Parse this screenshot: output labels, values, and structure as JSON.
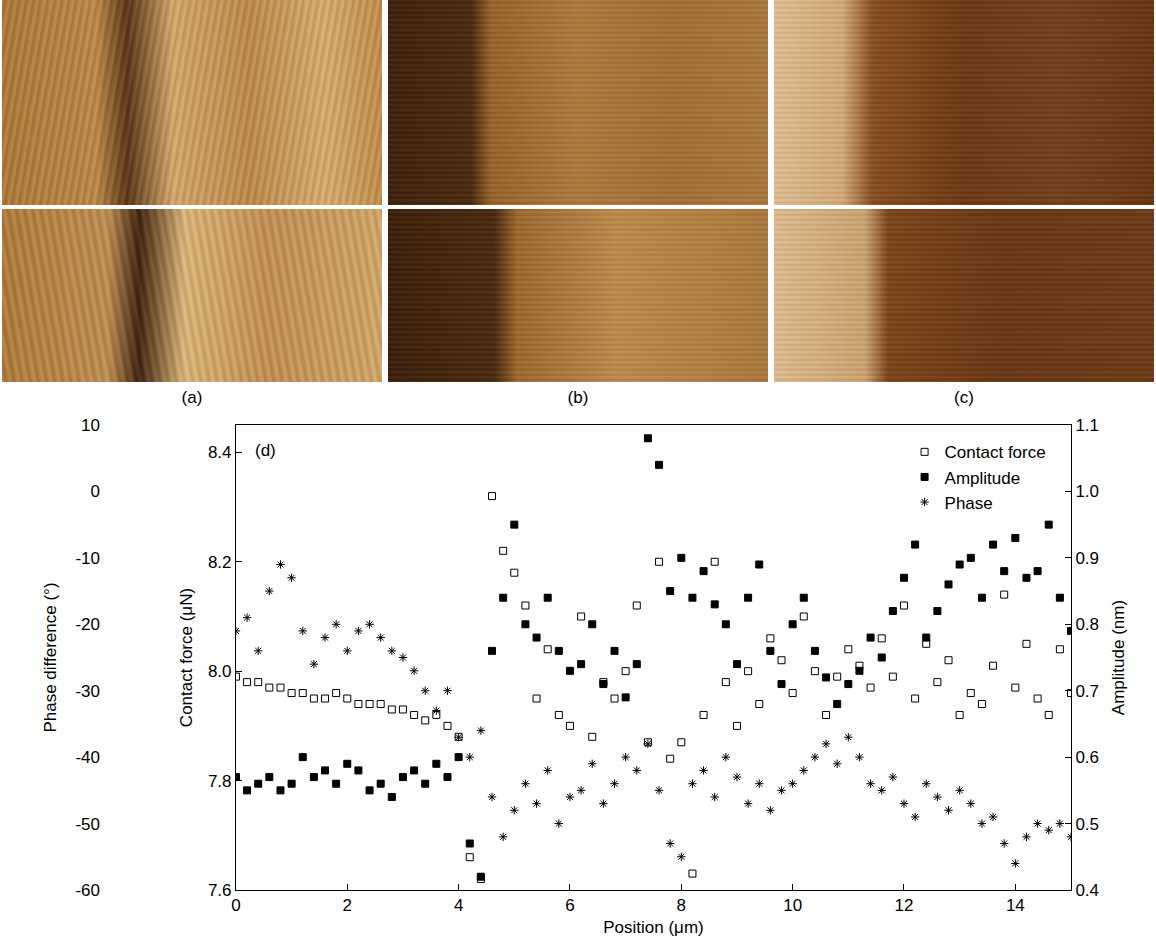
{
  "panels": [
    {
      "label": "(a)"
    },
    {
      "label": "(b)"
    },
    {
      "label": "(c)"
    }
  ],
  "chart_data": {
    "type": "scatter",
    "panel_label": "(d)",
    "xlabel": "Position (μm)",
    "ylabel": "Phase difference (°)",
    "y2label": "Contact force (μN)",
    "y3label": "Amplitude (nm)",
    "xlim": [
      0,
      15
    ],
    "xticks": [
      0,
      2,
      4,
      6,
      8,
      10,
      12,
      14
    ],
    "ylim": [
      -60,
      10
    ],
    "yticks": [
      -60,
      -50,
      -40,
      -30,
      -20,
      -10,
      0,
      10
    ],
    "y2lim": [
      7.6,
      8.45
    ],
    "y2ticks": [
      7.6,
      7.8,
      {
        "value": 8,
        "label": "8.0"
      },
      8.2,
      8.4
    ],
    "y3lim": [
      0.4,
      1.1
    ],
    "y3ticks": [
      0.4,
      0.5,
      0.6,
      0.7,
      0.8,
      0.9,
      {
        "value": 1,
        "label": "1.0"
      },
      1.1
    ],
    "legend": "upper right",
    "grid": false,
    "x": [
      0,
      0.2,
      0.4,
      0.6,
      0.8,
      1,
      1.2,
      1.4,
      1.6,
      1.8,
      2,
      2.2,
      2.4,
      2.6,
      2.8,
      3,
      3.2,
      3.4,
      3.6,
      3.8,
      4,
      4.2,
      4.4,
      4.6,
      4.8,
      5,
      5.2,
      5.4,
      5.6,
      5.8,
      6,
      6.2,
      6.4,
      6.6,
      6.8,
      7,
      7.2,
      7.4,
      7.6,
      7.8,
      8,
      8.2,
      8.4,
      8.6,
      8.8,
      9,
      9.2,
      9.4,
      9.6,
      9.8,
      10,
      10.2,
      10.4,
      10.6,
      10.8,
      11,
      11.2,
      11.4,
      11.6,
      11.8,
      12,
      12.2,
      12.4,
      12.6,
      12.8,
      13,
      13.2,
      13.4,
      13.6,
      13.8,
      14,
      14.2,
      14.4,
      14.6,
      14.8,
      15
    ],
    "series": [
      {
        "name": "Contact force",
        "axis": "y2",
        "color": "#000000",
        "marker": "square-open",
        "values": [
          7.99,
          7.98,
          7.98,
          7.97,
          7.97,
          7.96,
          7.96,
          7.95,
          7.95,
          7.96,
          7.95,
          7.94,
          7.94,
          7.94,
          7.93,
          7.93,
          7.92,
          7.91,
          7.92,
          7.9,
          7.88,
          7.66,
          7.62,
          8.32,
          8.22,
          8.18,
          8.12,
          7.95,
          8.04,
          7.92,
          7.9,
          8.1,
          7.88,
          7.98,
          7.95,
          8.0,
          8.12,
          7.87,
          8.2,
          7.84,
          7.87,
          7.63,
          7.92,
          8.2,
          7.98,
          7.9,
          8.0,
          7.94,
          8.06,
          8.02,
          7.96,
          8.1,
          8.0,
          7.92,
          7.99,
          8.04,
          8.01,
          7.97,
          8.06,
          7.99,
          8.12,
          7.95,
          8.05,
          7.98,
          8.02,
          7.92,
          7.96,
          7.94,
          8.01,
          8.14,
          7.97,
          8.05,
          7.95,
          7.92,
          8.04,
          7.96
        ]
      },
      {
        "name": "Amplitude",
        "axis": "y3",
        "color": "#000000",
        "marker": "square",
        "values": [
          0.57,
          0.55,
          0.56,
          0.57,
          0.55,
          0.56,
          0.6,
          0.57,
          0.58,
          0.56,
          0.59,
          0.58,
          0.55,
          0.56,
          0.54,
          0.57,
          0.58,
          0.56,
          0.59,
          0.57,
          0.6,
          0.47,
          0.42,
          0.76,
          0.84,
          0.95,
          0.8,
          0.78,
          0.84,
          0.76,
          0.73,
          0.74,
          0.8,
          0.71,
          0.76,
          0.69,
          0.74,
          1.08,
          1.04,
          0.85,
          0.9,
          0.84,
          0.88,
          0.83,
          0.8,
          0.74,
          0.84,
          0.89,
          0.76,
          0.71,
          0.8,
          0.84,
          0.76,
          0.72,
          0.68,
          0.71,
          0.73,
          0.78,
          0.75,
          0.82,
          0.87,
          0.92,
          0.78,
          0.82,
          0.86,
          0.89,
          0.9,
          0.84,
          0.92,
          0.88,
          0.93,
          0.87,
          0.88,
          0.95,
          0.84,
          0.79
        ]
      },
      {
        "name": "Phase",
        "axis": "y",
        "color": "#000000",
        "marker": "asterisk",
        "values": [
          -21,
          -19,
          -24,
          -15,
          -11,
          -13,
          -21,
          -26,
          -22,
          -20,
          -24,
          -21,
          -20,
          -22,
          -24,
          -25,
          -27,
          -30,
          -33,
          -30,
          -37,
          -40,
          -36,
          -46,
          -52,
          -48,
          -44,
          -47,
          -42,
          -50,
          -46,
          -45,
          -41,
          -47,
          -44,
          -40,
          -42,
          -38,
          -45,
          -53,
          -55,
          -44,
          -42,
          -46,
          -40,
          -43,
          -47,
          -44,
          -48,
          -45,
          -44,
          -42,
          -40,
          -38,
          -41,
          -37,
          -40,
          -44,
          -45,
          -43,
          -47,
          -49,
          -44,
          -46,
          -48,
          -45,
          -47,
          -50,
          -49,
          -53,
          -56,
          -52,
          -50,
          -51,
          -50,
          -52
        ]
      }
    ]
  }
}
